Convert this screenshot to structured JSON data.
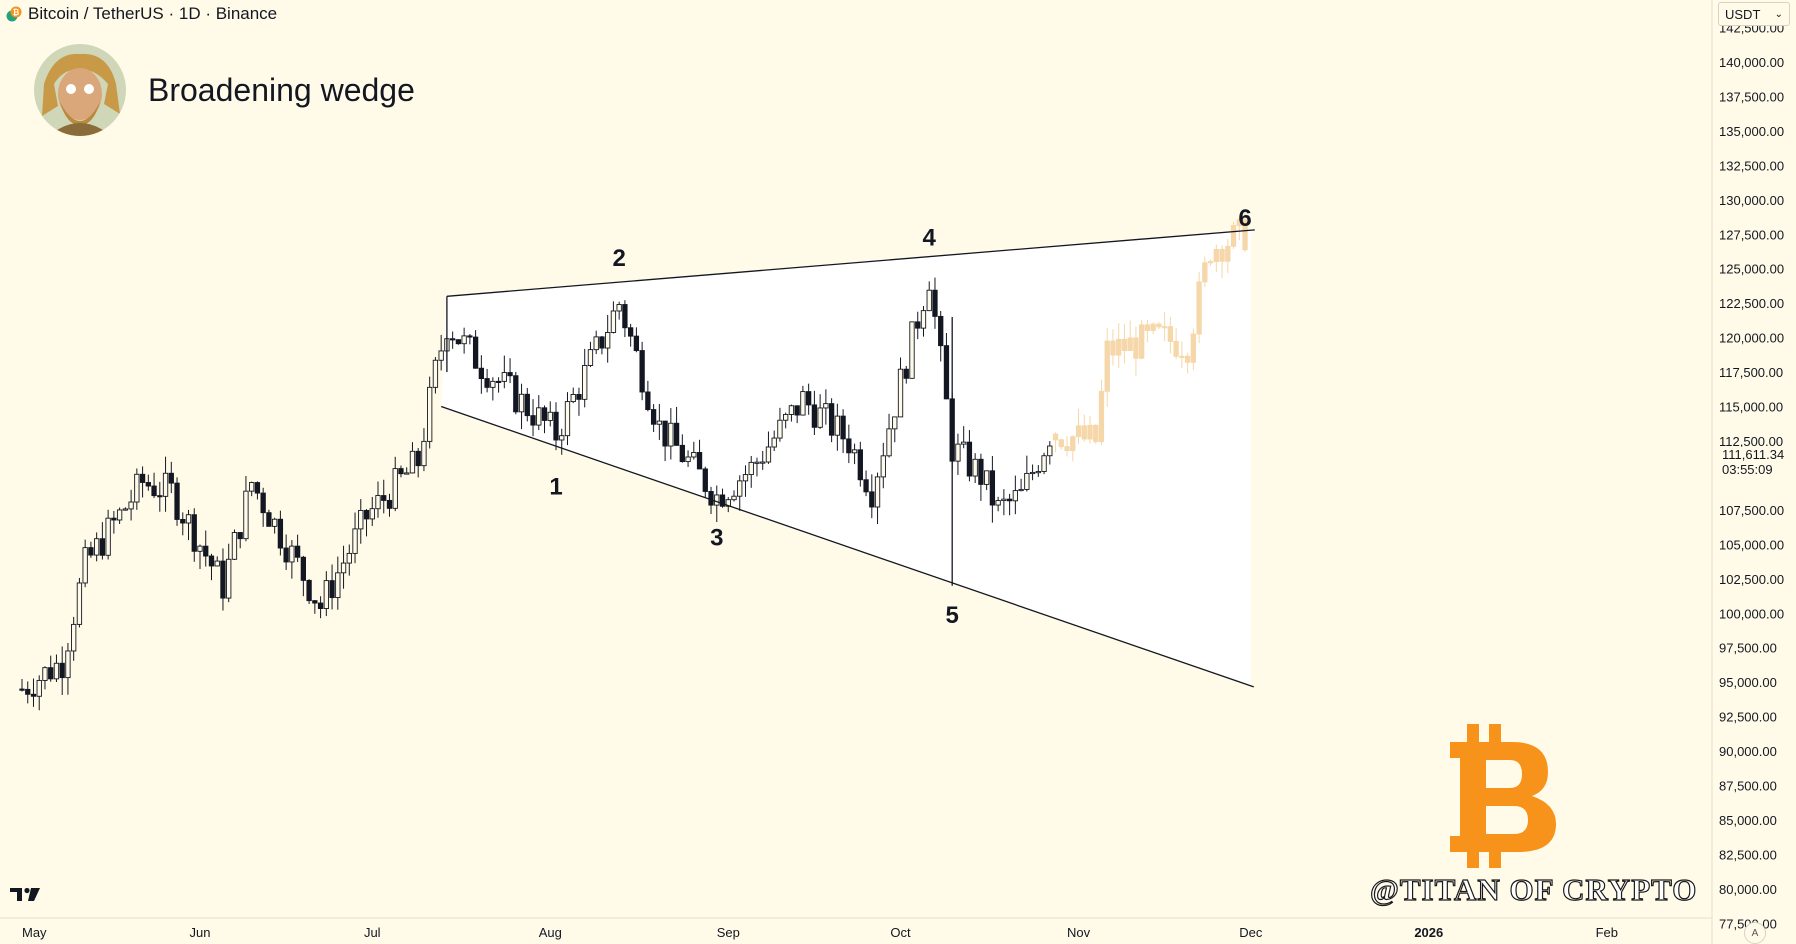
{
  "header": {
    "symbol_line": "Bitcoin / TetherUS · 1D · Binance"
  },
  "title": "Broadening wedge",
  "unit_select": {
    "value": "USDT"
  },
  "last_price": {
    "value": "111,611.34",
    "countdown": "03:55:09"
  },
  "auto_button": "A",
  "watermark": {
    "text": "@TITAN OF CRYPTO",
    "logo": "bitcoin-b-logo"
  },
  "icons": {
    "coin": "bitcoin-tether-icon",
    "avatar": "titan-avatar",
    "brand": "tradingview-logo-icon"
  },
  "colors": {
    "background": "#fffbe8",
    "candle": "#131722",
    "projection": "#f5d7a9",
    "wedge_fill": "#ffffff",
    "bitcoin": "#f7931a"
  },
  "chart_data": {
    "type": "candlestick",
    "title": "Broadening wedge",
    "y_axis": {
      "ticks": [
        142500,
        140000,
        137500,
        135000,
        132500,
        130000,
        127500,
        125000,
        122500,
        120000,
        117500,
        115000,
        112500,
        107500,
        105000,
        102500,
        100000,
        97500,
        95000,
        92500,
        90000,
        87500,
        85000,
        82500,
        80000,
        77500
      ],
      "tick_labels": [
        "142,500.00",
        "140,000.00",
        "137,500.00",
        "135,000.00",
        "132,500.00",
        "130,000.00",
        "127,500.00",
        "125,000.00",
        "122,500.00",
        "120,000.00",
        "117,500.00",
        "115,000.00",
        "112,500.00",
        "107,500.00",
        "105,000.00",
        "102,500.00",
        "100,000.00",
        "97,500.00",
        "95,000.00",
        "92,500.00",
        "90,000.00",
        "87,500.00",
        "85,000.00",
        "82,500.00",
        "80,000.00",
        "77,500.00"
      ],
      "range": [
        76000,
        144500
      ]
    },
    "x_axis": {
      "labels": [
        "May",
        "Jun",
        "Jul",
        "Aug",
        "Sep",
        "Oct",
        "Nov",
        "Dec",
        "2026",
        "Feb"
      ],
      "label_dates": [
        "2025-05-01",
        "2025-06-01",
        "2025-07-01",
        "2025-08-01",
        "2025-09-01",
        "2025-10-01",
        "2025-11-01",
        "2025-12-01",
        "2026-01-01",
        "2026-02-01"
      ],
      "range": [
        "2025-05-01",
        "2026-03-15"
      ]
    },
    "actual_anchors": [
      [
        "2025-05-01",
        94500
      ],
      [
        "2025-05-08",
        96500
      ],
      [
        "2025-05-12",
        103500
      ],
      [
        "2025-05-22",
        109500
      ],
      [
        "2025-05-27",
        108800
      ],
      [
        "2025-06-05",
        102000
      ],
      [
        "2025-06-10",
        109500
      ],
      [
        "2025-06-22",
        100500
      ],
      [
        "2025-06-30",
        107000
      ],
      [
        "2025-07-09",
        111000
      ],
      [
        "2025-07-12",
        117500
      ],
      [
        "2025-07-14",
        121000
      ],
      [
        "2025-07-20",
        118000
      ],
      [
        "2025-08-02",
        113000
      ],
      [
        "2025-08-13",
        122500
      ],
      [
        "2025-08-20",
        113500
      ],
      [
        "2025-08-30",
        108500
      ],
      [
        "2025-09-05",
        110500
      ],
      [
        "2025-09-14",
        115500
      ],
      [
        "2025-09-22",
        112500
      ],
      [
        "2025-09-26",
        109000
      ],
      [
        "2025-10-06",
        124500
      ],
      [
        "2025-10-10",
        112000
      ],
      [
        "2025-10-15",
        110000
      ],
      [
        "2025-10-18",
        107500
      ],
      [
        "2025-10-22",
        108500
      ],
      [
        "2025-10-27",
        113000
      ]
    ],
    "projection_anchors": [
      [
        "2025-10-28",
        113000
      ],
      [
        "2025-11-04",
        112500
      ],
      [
        "2025-11-06",
        119000
      ],
      [
        "2025-11-15",
        120000
      ],
      [
        "2025-11-20",
        119500
      ],
      [
        "2025-11-24",
        126500
      ],
      [
        "2025-11-30",
        127500
      ]
    ],
    "wedge": {
      "upper": [
        [
          "2025-07-14",
          123000
        ],
        [
          "2025-12-01",
          127800
        ]
      ],
      "lower": [
        [
          "2025-07-13",
          115000
        ],
        [
          "2025-12-01",
          94800
        ]
      ],
      "right_edge": "2025-12-01"
    },
    "wave_labels": [
      {
        "label": "1",
        "date": "2025-08-02",
        "price": 108600
      },
      {
        "label": "2",
        "date": "2025-08-13",
        "price": 125200
      },
      {
        "label": "3",
        "date": "2025-08-30",
        "price": 104900
      },
      {
        "label": "4",
        "date": "2025-10-06",
        "price": 126700
      },
      {
        "label": "5",
        "date": "2025-10-10",
        "price": 99300
      },
      {
        "label": "6",
        "date": "2025-11-30",
        "price": 128100
      }
    ],
    "crash_wick": {
      "date": "2025-10-10",
      "high": 121500,
      "low": 102000
    },
    "last_price": 111611.34,
    "grid": false
  }
}
